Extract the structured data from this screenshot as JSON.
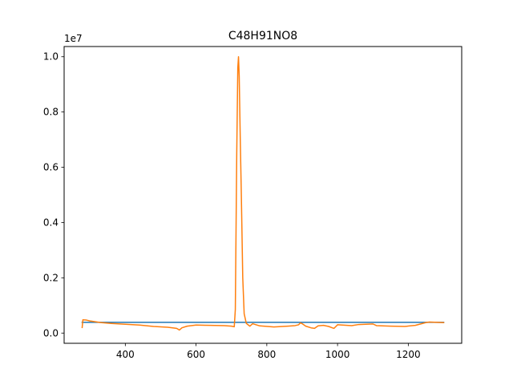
{
  "chart_data": {
    "type": "line",
    "title": "C48H91NO8",
    "offset_label": "1e7",
    "xlim": [
      227,
      1351
    ],
    "ylim": [
      -370000,
      10370000
    ],
    "x_ticks": [
      400,
      600,
      800,
      1000,
      1200
    ],
    "x_tick_labels": [
      "400",
      "600",
      "800",
      "1000",
      "1200"
    ],
    "y_ticks": [
      0,
      2000000,
      4000000,
      6000000,
      8000000,
      10000000
    ],
    "y_tick_labels": [
      "0.0",
      "0.2",
      "0.4",
      "0.6",
      "0.8",
      "1.0"
    ],
    "grid": false,
    "series": [
      {
        "color": "#1f77b4",
        "points": [
          [
            278,
            390000
          ],
          [
            1300,
            390000
          ]
        ]
      },
      {
        "color": "#ff7f0e",
        "points": [
          [
            278,
            200000
          ],
          [
            280,
            480000
          ],
          [
            290,
            470000
          ],
          [
            300,
            440000
          ],
          [
            330,
            380000
          ],
          [
            360,
            350000
          ],
          [
            400,
            320000
          ],
          [
            440,
            290000
          ],
          [
            480,
            240000
          ],
          [
            520,
            210000
          ],
          [
            545,
            170000
          ],
          [
            553,
            110000
          ],
          [
            560,
            190000
          ],
          [
            575,
            250000
          ],
          [
            600,
            290000
          ],
          [
            640,
            280000
          ],
          [
            680,
            270000
          ],
          [
            700,
            250000
          ],
          [
            708,
            230000
          ],
          [
            711,
            850000
          ],
          [
            715,
            6500000
          ],
          [
            718,
            9600000
          ],
          [
            720,
            10000000
          ],
          [
            722,
            9300000
          ],
          [
            725,
            7000000
          ],
          [
            728,
            5000000
          ],
          [
            732,
            2000000
          ],
          [
            736,
            700000
          ],
          [
            742,
            350000
          ],
          [
            748,
            290000
          ],
          [
            752,
            250000
          ],
          [
            760,
            340000
          ],
          [
            780,
            260000
          ],
          [
            820,
            220000
          ],
          [
            860,
            250000
          ],
          [
            880,
            270000
          ],
          [
            890,
            300000
          ],
          [
            895,
            370000
          ],
          [
            900,
            340000
          ],
          [
            910,
            250000
          ],
          [
            925,
            190000
          ],
          [
            935,
            170000
          ],
          [
            945,
            260000
          ],
          [
            960,
            280000
          ],
          [
            975,
            240000
          ],
          [
            985,
            190000
          ],
          [
            990,
            170000
          ],
          [
            1000,
            300000
          ],
          [
            1040,
            270000
          ],
          [
            1060,
            310000
          ],
          [
            1080,
            320000
          ],
          [
            1100,
            330000
          ],
          [
            1110,
            270000
          ],
          [
            1150,
            250000
          ],
          [
            1190,
            240000
          ],
          [
            1220,
            280000
          ],
          [
            1250,
            380000
          ],
          [
            1260,
            400000
          ],
          [
            1280,
            390000
          ],
          [
            1300,
            380000
          ]
        ]
      }
    ]
  }
}
